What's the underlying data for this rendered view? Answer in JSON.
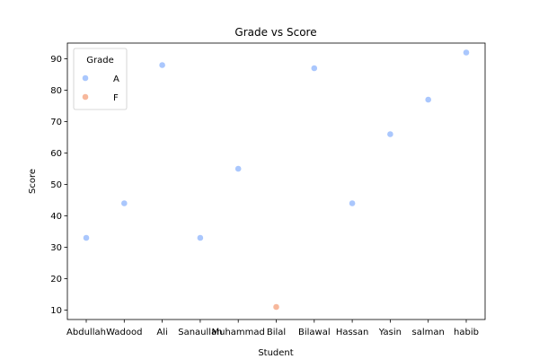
{
  "chart_data": {
    "type": "scatter",
    "title": "Grade vs Score",
    "xlabel": "Student",
    "ylabel": "Score",
    "categories": [
      "Abdullah",
      "Wadood",
      "Ali",
      "Sana",
      "Muhammad",
      "Bilal",
      "Bilawal",
      "Hassan",
      "Yasin",
      "salman",
      "habib"
    ],
    "x_tick_labels": [
      "Abdullah",
      "Wadood",
      "Ali",
      "Sanaullah",
      "Muhammad",
      "Bilal",
      "Bilawal",
      "Hassan",
      "Yasin",
      "salman",
      "habib"
    ],
    "values": [
      33,
      44,
      88,
      33,
      55,
      11,
      87,
      44,
      66,
      77,
      92
    ],
    "grades": [
      "A",
      "A",
      "A",
      "A",
      "A",
      "F",
      "A",
      "A",
      "A",
      "A",
      "A"
    ],
    "ylim": [
      7,
      95
    ],
    "y_ticks": [
      10,
      20,
      30,
      40,
      50,
      60,
      70,
      80,
      90
    ],
    "grid": false,
    "legend": {
      "title": "Grade",
      "placement": "top-left",
      "entries": [
        {
          "label": "A",
          "color": "#aac7fd"
        },
        {
          "label": "F",
          "color": "#f7b89c"
        }
      ]
    }
  }
}
